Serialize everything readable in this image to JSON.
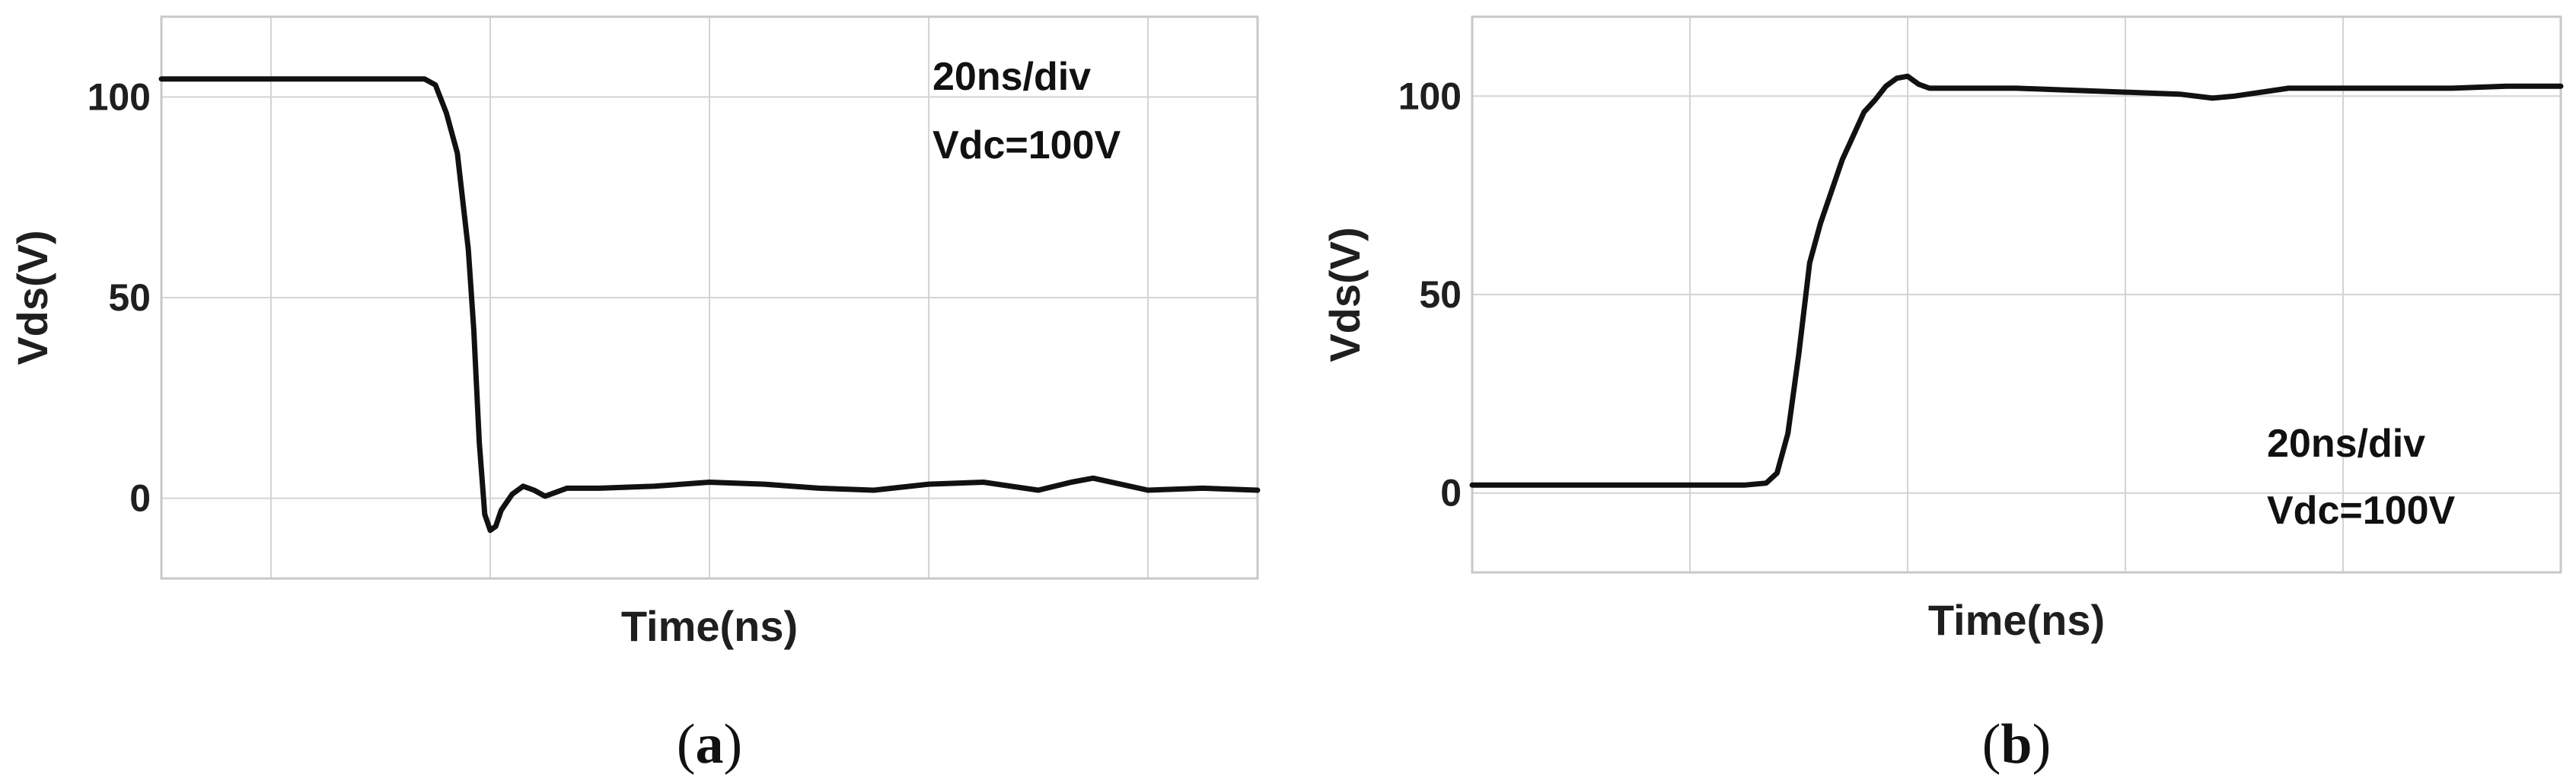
{
  "colors": {
    "trace": "#111111",
    "grid": "#d4d4d4",
    "frame": "#c8c8c8",
    "text": "#1f1f1f"
  },
  "chart_data": [
    {
      "type": "line",
      "id": "a",
      "caption_open": "(",
      "caption_letter": "a",
      "caption_close": ")",
      "xlabel": "Time(ns)",
      "ylabel": "Vds(V)",
      "annotations": [
        "20ns/div",
        "Vdc=100V"
      ],
      "annotation_position": "top-right",
      "xlim": [
        0,
        100
      ],
      "ylim": [
        -20,
        120
      ],
      "yticks": [
        0,
        50,
        100
      ],
      "ytick_labels": [
        "0",
        "50",
        "100"
      ],
      "xgrid": [
        10,
        30,
        50,
        70,
        90
      ],
      "grid": true,
      "series": [
        {
          "x": [
            0,
            5,
            10,
            15,
            20,
            24,
            25,
            26,
            27,
            28,
            28.5,
            29,
            29.5,
            30,
            30.5,
            31,
            32,
            33,
            34,
            35,
            36,
            37,
            38,
            40,
            45,
            50,
            55,
            60,
            65,
            70,
            75,
            80,
            83,
            85,
            90,
            95,
            100
          ],
          "y": [
            104.5,
            104.5,
            104.5,
            104.5,
            104.5,
            104.5,
            103,
            96,
            86,
            62,
            42,
            14,
            -4,
            -8,
            -7,
            -3,
            1,
            3,
            2,
            0.5,
            1.5,
            2.5,
            2.5,
            2.5,
            3,
            4,
            3.5,
            2.5,
            2,
            3.5,
            4,
            2,
            4,
            5,
            2,
            2.5,
            2
          ]
        }
      ]
    },
    {
      "type": "line",
      "id": "b",
      "caption_open": "(",
      "caption_letter": "b",
      "caption_close": ")",
      "xlabel": "Time(ns)",
      "ylabel": "Vds(V)",
      "annotations": [
        "20ns/div",
        "Vdc=100V"
      ],
      "annotation_position": "bottom-right",
      "xlim": [
        0,
        100
      ],
      "ylim": [
        -20,
        120
      ],
      "yticks": [
        0,
        50,
        100
      ],
      "ytick_labels": [
        "0",
        "50",
        "100"
      ],
      "xgrid": [
        20,
        40,
        60,
        80
      ],
      "grid": true,
      "series": [
        {
          "x": [
            0,
            5,
            10,
            15,
            20,
            25,
            27,
            28,
            29,
            30,
            31,
            32,
            33,
            34,
            35,
            36,
            37,
            38,
            39,
            40,
            40.5,
            41,
            42,
            45,
            50,
            55,
            60,
            65,
            68,
            70,
            75,
            80,
            85,
            90,
            95,
            100
          ],
          "y": [
            2,
            2,
            2,
            2,
            2,
            2,
            2.5,
            5,
            15,
            35,
            58,
            68,
            76,
            84,
            90,
            96,
            99,
            102.5,
            104.5,
            105,
            104,
            103,
            102,
            102,
            102,
            101.5,
            101,
            100.5,
            99.5,
            100,
            102,
            102,
            102,
            102,
            102.5,
            102.5
          ]
        }
      ]
    }
  ]
}
